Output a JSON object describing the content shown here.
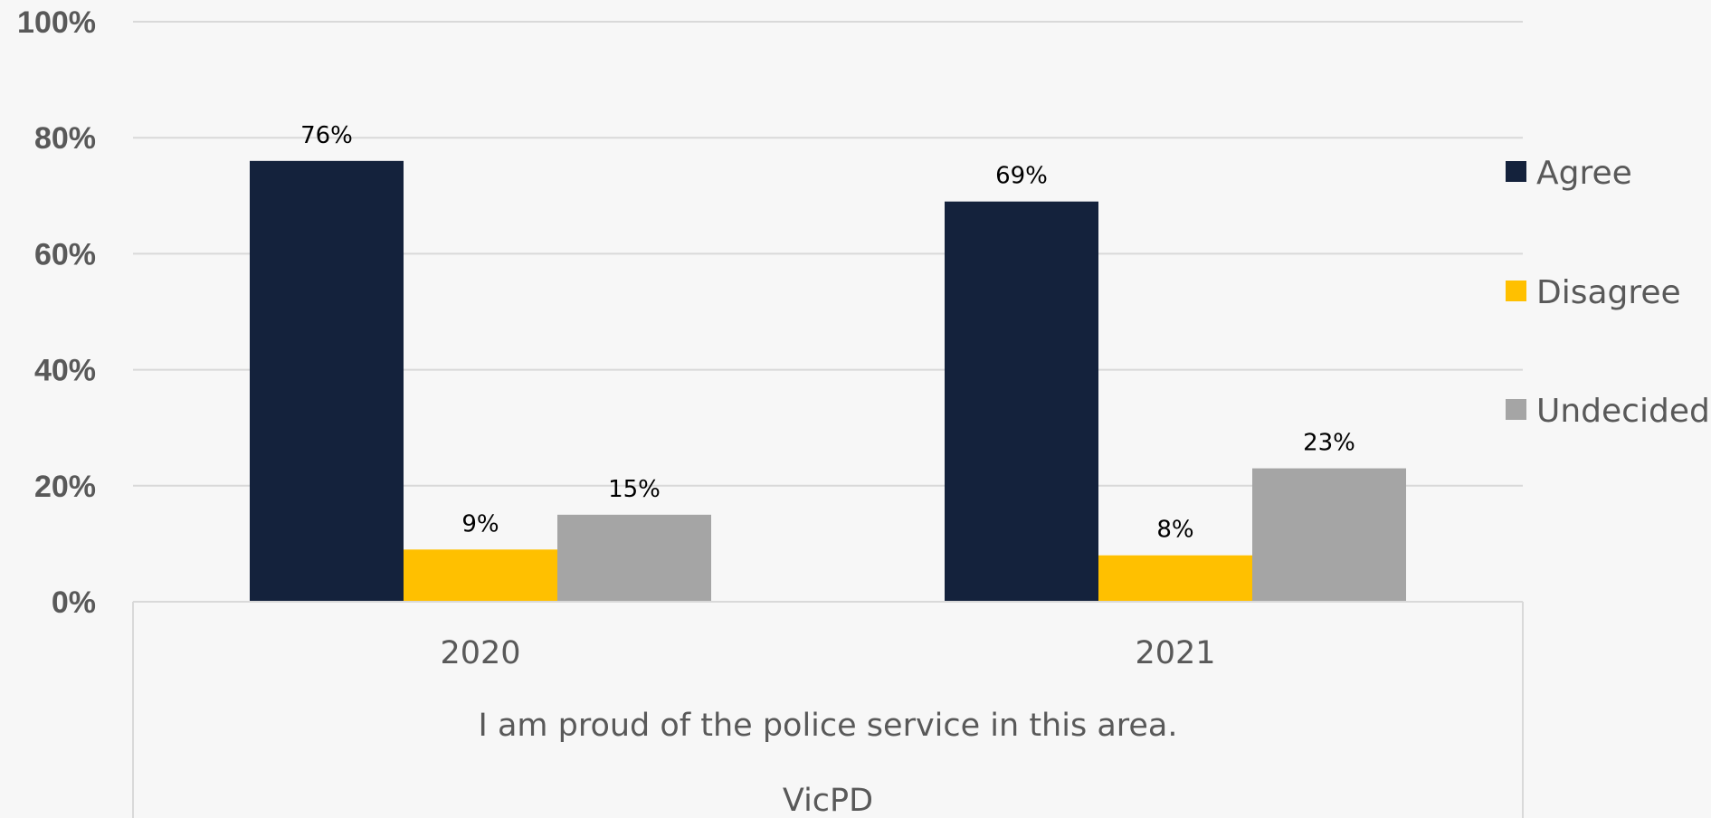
{
  "chart_data": {
    "type": "bar",
    "categories": [
      "2020",
      "2021"
    ],
    "series": [
      {
        "name": "Agree",
        "values": [
          76,
          69
        ],
        "labels": [
          "76%",
          "69%"
        ],
        "color": "#14223c"
      },
      {
        "name": "Disagree",
        "values": [
          9,
          8
        ],
        "labels": [
          "9%",
          "8%"
        ],
        "color": "#ffc000"
      },
      {
        "name": "Undecided",
        "values": [
          15,
          23
        ],
        "labels": [
          "15%",
          "23%"
        ],
        "color": "#a5a5a5"
      }
    ],
    "ylim": [
      0,
      100
    ],
    "y_ticks": [
      0,
      20,
      40,
      60,
      80,
      100
    ],
    "y_tick_labels": [
      "0%",
      "20%",
      "40%",
      "60%",
      "80%",
      "100%"
    ],
    "grid": true,
    "legend_position": "right",
    "group_labels": [
      "I am proud of the police service in this area.",
      "VicPD"
    ],
    "colors": {
      "background": "#f7f7f7",
      "gridline": "#d9d9d9",
      "text": "#595959"
    }
  }
}
